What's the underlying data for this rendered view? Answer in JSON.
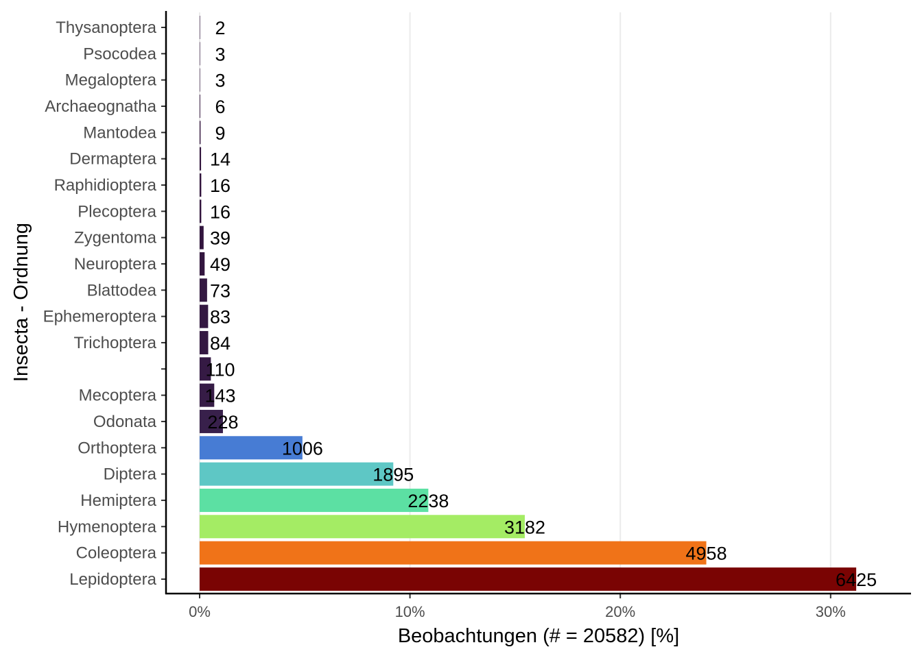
{
  "chart_data": {
    "type": "bar",
    "orientation": "horizontal",
    "xlabel": "Beobachtungen (# = 20582) [%]",
    "ylabel": "Insecta - Ordnung",
    "total": 20582,
    "xlim": [
      0,
      0.34
    ],
    "x_ticks": [
      {
        "value": 0.0,
        "label": "0%"
      },
      {
        "value": 0.1,
        "label": "10%"
      },
      {
        "value": 0.2,
        "label": "20%"
      },
      {
        "value": 0.3,
        "label": "30%"
      }
    ],
    "grid": "vertical major",
    "legend": "none",
    "categories": [
      {
        "name": "Thysanoptera",
        "count": 2,
        "label": "2",
        "color": "#30123b"
      },
      {
        "name": "Psocodea",
        "count": 3,
        "label": "3",
        "color": "#30123b"
      },
      {
        "name": "Megaloptera",
        "count": 3,
        "label": "3",
        "color": "#30123b"
      },
      {
        "name": "Archaeognatha",
        "count": 6,
        "label": "6",
        "color": "#30123b"
      },
      {
        "name": "Mantodea",
        "count": 9,
        "label": "9",
        "color": "#30123b"
      },
      {
        "name": "Dermaptera",
        "count": 14,
        "label": "14",
        "color": "#31133c"
      },
      {
        "name": "Raphidioptera",
        "count": 16,
        "label": "16",
        "color": "#31133c"
      },
      {
        "name": "Plecoptera",
        "count": 16,
        "label": "16",
        "color": "#31133c"
      },
      {
        "name": "Zygentoma",
        "count": 39,
        "label": "39",
        "color": "#32153e"
      },
      {
        "name": "Neuroptera",
        "count": 49,
        "label": "49",
        "color": "#33163f"
      },
      {
        "name": "Blattodea",
        "count": 73,
        "label": "73",
        "color": "#341841"
      },
      {
        "name": "Ephemeroptera",
        "count": 83,
        "label": "83",
        "color": "#341842"
      },
      {
        "name": "Trichoptera",
        "count": 84,
        "label": "84",
        "color": "#341842"
      },
      {
        "name": "",
        "count": 110,
        "label": "110",
        "color": "#351a44"
      },
      {
        "name": "Mecoptera",
        "count": 143,
        "label": "143",
        "color": "#361c46"
      },
      {
        "name": "Odonata",
        "count": 228,
        "label": "228",
        "color": "#38204b"
      },
      {
        "name": "Orthoptera",
        "count": 1006,
        "label": "1006",
        "color": "#477cd4"
      },
      {
        "name": "Diptera",
        "count": 1895,
        "label": "1895",
        "color": "#5ec7c5"
      },
      {
        "name": "Hemiptera",
        "count": 2238,
        "label": "2238",
        "color": "#5ce0a3"
      },
      {
        "name": "Hymenoptera",
        "count": 3182,
        "label": "3182",
        "color": "#a4ec64"
      },
      {
        "name": "Coleoptera",
        "count": 4958,
        "label": "4958",
        "color": "#f07318"
      },
      {
        "name": "Lepidoptera",
        "count": 6425,
        "label": "6425",
        "color": "#7a0403"
      }
    ]
  }
}
